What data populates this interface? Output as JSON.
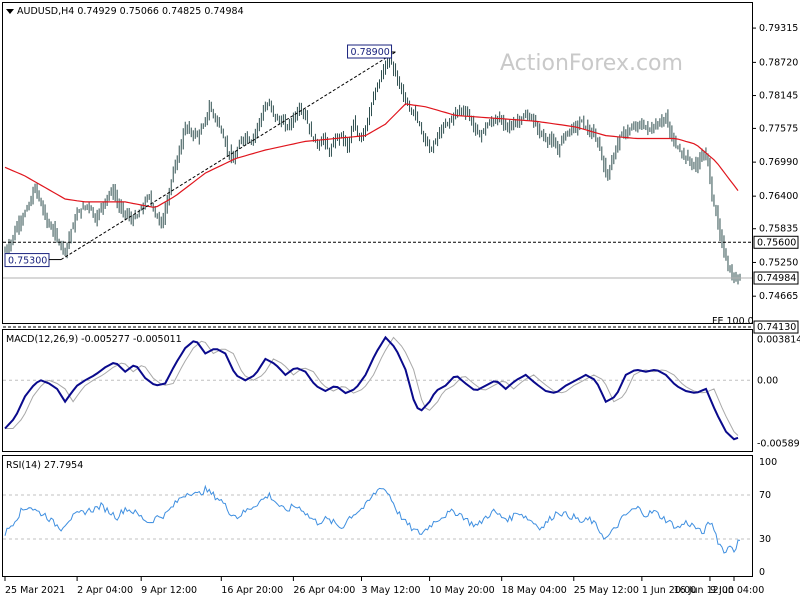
{
  "chart_data": [
    {
      "type": "candlestick",
      "symbol": "AUDUSD",
      "timeframe": "H4",
      "ohlc": {
        "open": "0.74929",
        "high": "0.75066",
        "low": "0.74825",
        "close": "0.74984"
      },
      "watermark": "ActionForex.com",
      "y_ticks": [
        "0.79315",
        "0.78720",
        "0.78145",
        "0.77575",
        "0.76990",
        "0.76400",
        "0.75835",
        "0.75250",
        "0.74665"
      ],
      "ylim": [
        0.742,
        0.7975
      ],
      "close_path": [
        [
          0,
          0.7545
        ],
        [
          3,
          0.756
        ],
        [
          6,
          0.759
        ],
        [
          9,
          0.7605
        ],
        [
          12,
          0.7625
        ],
        [
          15,
          0.7655
        ],
        [
          18,
          0.7625
        ],
        [
          21,
          0.7595
        ],
        [
          24,
          0.758
        ],
        [
          27,
          0.756
        ],
        [
          30,
          0.7545
        ],
        [
          33,
          0.758
        ],
        [
          36,
          0.761
        ],
        [
          39,
          0.762
        ],
        [
          42,
          0.7625
        ],
        [
          45,
          0.76
        ],
        [
          48,
          0.762
        ],
        [
          51,
          0.764
        ],
        [
          54,
          0.765
        ],
        [
          57,
          0.762
        ],
        [
          60,
          0.761
        ],
        [
          63,
          0.76
        ],
        [
          66,
          0.7605
        ],
        [
          69,
          0.7625
        ],
        [
          72,
          0.764
        ],
        [
          75,
          0.761
        ],
        [
          78,
          0.759
        ],
        [
          80,
          0.762
        ],
        [
          84,
          0.768
        ],
        [
          87,
          0.772
        ],
        [
          90,
          0.776
        ],
        [
          93,
          0.775
        ],
        [
          96,
          0.7745
        ],
        [
          99,
          0.776
        ],
        [
          102,
          0.7795
        ],
        [
          105,
          0.7775
        ],
        [
          108,
          0.7755
        ],
        [
          111,
          0.772
        ],
        [
          114,
          0.77
        ],
        [
          117,
          0.773
        ],
        [
          120,
          0.7745
        ],
        [
          123,
          0.7735
        ],
        [
          126,
          0.776
        ],
        [
          129,
          0.779
        ],
        [
          132,
          0.78
        ],
        [
          135,
          0.7775
        ],
        [
          138,
          0.777
        ],
        [
          141,
          0.776
        ],
        [
          144,
          0.7775
        ],
        [
          147,
          0.7795
        ],
        [
          150,
          0.778
        ],
        [
          153,
          0.7745
        ],
        [
          156,
          0.773
        ],
        [
          159,
          0.774
        ],
        [
          162,
          0.7715
        ],
        [
          165,
          0.774
        ],
        [
          168,
          0.7745
        ],
        [
          171,
          0.7725
        ],
        [
          174,
          0.7765
        ],
        [
          177,
          0.774
        ],
        [
          180,
          0.776
        ],
        [
          183,
          0.78
        ],
        [
          186,
          0.783
        ],
        [
          189,
          0.786
        ],
        [
          192,
          0.788
        ],
        [
          195,
          0.785
        ],
        [
          198,
          0.782
        ],
        [
          201,
          0.78
        ],
        [
          204,
          0.7785
        ],
        [
          207,
          0.7765
        ],
        [
          210,
          0.7735
        ],
        [
          213,
          0.772
        ],
        [
          216,
          0.7745
        ],
        [
          219,
          0.776
        ],
        [
          222,
          0.777
        ],
        [
          225,
          0.7785
        ],
        [
          228,
          0.779
        ],
        [
          231,
          0.7785
        ],
        [
          234,
          0.776
        ],
        [
          237,
          0.7745
        ],
        [
          240,
          0.776
        ],
        [
          243,
          0.777
        ],
        [
          246,
          0.7775
        ],
        [
          249,
          0.7765
        ],
        [
          252,
          0.776
        ],
        [
          255,
          0.777
        ],
        [
          258,
          0.7775
        ],
        [
          261,
          0.778
        ],
        [
          264,
          0.777
        ],
        [
          267,
          0.775
        ],
        [
          270,
          0.774
        ],
        [
          273,
          0.7735
        ],
        [
          276,
          0.772
        ],
        [
          279,
          0.7745
        ],
        [
          282,
          0.7755
        ],
        [
          285,
          0.776
        ],
        [
          288,
          0.777
        ],
        [
          291,
          0.7755
        ],
        [
          294,
          0.7745
        ],
        [
          297,
          0.7725
        ],
        [
          300,
          0.7675
        ],
        [
          303,
          0.77
        ],
        [
          306,
          0.7735
        ],
        [
          309,
          0.775
        ],
        [
          312,
          0.7755
        ],
        [
          315,
          0.776
        ],
        [
          318,
          0.7765
        ],
        [
          321,
          0.7755
        ],
        [
          324,
          0.776
        ],
        [
          327,
          0.777
        ],
        [
          330,
          0.7775
        ],
        [
          333,
          0.774
        ],
        [
          336,
          0.7725
        ],
        [
          339,
          0.771
        ],
        [
          342,
          0.77
        ],
        [
          345,
          0.769
        ],
        [
          348,
          0.7715
        ],
        [
          351,
          0.77
        ],
        [
          353,
          0.764
        ],
        [
          355,
          0.761
        ],
        [
          357,
          0.757
        ],
        [
          359,
          0.7545
        ],
        [
          361,
          0.752
        ],
        [
          363,
          0.75
        ],
        [
          365,
          0.7495
        ],
        [
          367,
          0.7498
        ]
      ],
      "ma_path": [
        [
          0,
          0.769
        ],
        [
          10,
          0.7675
        ],
        [
          20,
          0.7655
        ],
        [
          30,
          0.7635
        ],
        [
          40,
          0.763
        ],
        [
          60,
          0.763
        ],
        [
          75,
          0.762
        ],
        [
          85,
          0.764
        ],
        [
          100,
          0.768
        ],
        [
          115,
          0.7705
        ],
        [
          130,
          0.772
        ],
        [
          150,
          0.7735
        ],
        [
          165,
          0.774
        ],
        [
          180,
          0.7745
        ],
        [
          190,
          0.7765
        ],
        [
          200,
          0.78
        ],
        [
          210,
          0.7795
        ],
        [
          225,
          0.778
        ],
        [
          245,
          0.7775
        ],
        [
          265,
          0.777
        ],
        [
          285,
          0.776
        ],
        [
          300,
          0.7745
        ],
        [
          315,
          0.774
        ],
        [
          335,
          0.774
        ],
        [
          345,
          0.773
        ],
        [
          355,
          0.77
        ],
        [
          367,
          0.7645
        ]
      ],
      "trendline": {
        "from": [
          28,
          0.753
        ],
        "to": [
          195,
          0.789
        ]
      },
      "swing_labels": [
        {
          "label": "0.78900",
          "bar": 195,
          "price": 0.789
        },
        {
          "label": "0.75300",
          "bar": 28,
          "price": 0.753
        }
      ],
      "levels": [
        {
          "price": 0.756,
          "label": "0.75600",
          "style": "dash"
        },
        {
          "price": 0.7498,
          "label": "0.74984",
          "style": "solid"
        },
        {
          "price": 0.7413,
          "label": "0.74130",
          "style": "dash",
          "note": "FE 100.0"
        }
      ],
      "bar_count": 368
    },
    {
      "type": "line",
      "title": "MACD(12,26,9) -0.005277 -0.005011",
      "y_ticks": [
        "0.003814",
        "0.00",
        "-0.005895"
      ],
      "ylim": [
        -0.0066,
        0.0046
      ],
      "zero_label": "0.00",
      "macd": [
        [
          0,
          -0.0045
        ],
        [
          5,
          -0.0035
        ],
        [
          10,
          -0.0015
        ],
        [
          15,
          -0.0003
        ],
        [
          18,
          0.0
        ],
        [
          22,
          -0.0003
        ],
        [
          26,
          -0.0008
        ],
        [
          30,
          -0.002
        ],
        [
          33,
          -0.0012
        ],
        [
          36,
          -0.0005
        ],
        [
          40,
          0.0
        ],
        [
          45,
          0.0005
        ],
        [
          50,
          0.0012
        ],
        [
          55,
          0.0017
        ],
        [
          60,
          0.0008
        ],
        [
          65,
          0.0015
        ],
        [
          70,
          0.0002
        ],
        [
          75,
          -0.0005
        ],
        [
          80,
          -0.0003
        ],
        [
          85,
          0.0015
        ],
        [
          90,
          0.003
        ],
        [
          95,
          0.0038
        ],
        [
          100,
          0.0025
        ],
        [
          105,
          0.003
        ],
        [
          110,
          0.0025
        ],
        [
          115,
          0.0005
        ],
        [
          120,
          0.0
        ],
        [
          125,
          0.0005
        ],
        [
          130,
          0.002
        ],
        [
          135,
          0.0015
        ],
        [
          140,
          0.0005
        ],
        [
          145,
          0.0012
        ],
        [
          150,
          0.0008
        ],
        [
          155,
          -0.0005
        ],
        [
          160,
          -0.001
        ],
        [
          165,
          -0.0005
        ],
        [
          170,
          -0.0012
        ],
        [
          175,
          -0.0008
        ],
        [
          180,
          0.0005
        ],
        [
          185,
          0.0025
        ],
        [
          190,
          0.004
        ],
        [
          195,
          0.003
        ],
        [
          200,
          0.001
        ],
        [
          205,
          -0.0025
        ],
        [
          208,
          -0.0028
        ],
        [
          212,
          -0.002
        ],
        [
          215,
          -0.001
        ],
        [
          220,
          -0.0005
        ],
        [
          225,
          0.0005
        ],
        [
          230,
          -0.0003
        ],
        [
          235,
          -0.001
        ],
        [
          240,
          -0.0005
        ],
        [
          245,
          0.0
        ],
        [
          250,
          -0.0008
        ],
        [
          255,
          0.0
        ],
        [
          260,
          0.0005
        ],
        [
          265,
          -0.0003
        ],
        [
          270,
          -0.001
        ],
        [
          275,
          -0.0012
        ],
        [
          280,
          -0.0005
        ],
        [
          285,
          0.0
        ],
        [
          290,
          0.0005
        ],
        [
          295,
          0.0
        ],
        [
          300,
          -0.002
        ],
        [
          305,
          -0.0015
        ],
        [
          310,
          0.0005
        ],
        [
          315,
          0.001
        ],
        [
          320,
          0.0008
        ],
        [
          325,
          0.001
        ],
        [
          330,
          0.0005
        ],
        [
          335,
          -0.0005
        ],
        [
          340,
          -0.001
        ],
        [
          345,
          -0.0012
        ],
        [
          350,
          -0.0008
        ],
        [
          355,
          -0.003
        ],
        [
          360,
          -0.0048
        ],
        [
          364,
          -0.0055
        ],
        [
          367,
          -0.0053
        ]
      ],
      "signal_lag": 4
    },
    {
      "type": "line",
      "title": "RSI(14) 27.7954",
      "y_ticks": [
        "100",
        "70",
        "30",
        "0"
      ],
      "ylim": [
        0,
        100
      ],
      "dashed_levels": [
        70,
        30
      ],
      "rsi": [
        [
          0,
          35
        ],
        [
          4,
          45
        ],
        [
          8,
          55
        ],
        [
          12,
          60
        ],
        [
          16,
          55
        ],
        [
          20,
          52
        ],
        [
          24,
          45
        ],
        [
          28,
          40
        ],
        [
          32,
          48
        ],
        [
          36,
          52
        ],
        [
          40,
          55
        ],
        [
          44,
          57
        ],
        [
          48,
          60
        ],
        [
          52,
          55
        ],
        [
          56,
          50
        ],
        [
          60,
          58
        ],
        [
          64,
          55
        ],
        [
          68,
          50
        ],
        [
          72,
          45
        ],
        [
          76,
          50
        ],
        [
          80,
          52
        ],
        [
          84,
          60
        ],
        [
          88,
          68
        ],
        [
          92,
          73
        ],
        [
          96,
          70
        ],
        [
          100,
          75
        ],
        [
          104,
          70
        ],
        [
          108,
          65
        ],
        [
          112,
          55
        ],
        [
          116,
          50
        ],
        [
          120,
          55
        ],
        [
          124,
          60
        ],
        [
          128,
          65
        ],
        [
          132,
          70
        ],
        [
          136,
          62
        ],
        [
          140,
          55
        ],
        [
          144,
          60
        ],
        [
          148,
          58
        ],
        [
          152,
          50
        ],
        [
          156,
          45
        ],
        [
          160,
          48
        ],
        [
          164,
          45
        ],
        [
          168,
          40
        ],
        [
          172,
          50
        ],
        [
          176,
          55
        ],
        [
          180,
          60
        ],
        [
          184,
          70
        ],
        [
          188,
          78
        ],
        [
          192,
          70
        ],
        [
          196,
          55
        ],
        [
          200,
          45
        ],
        [
          204,
          38
        ],
        [
          208,
          35
        ],
        [
          212,
          42
        ],
        [
          216,
          48
        ],
        [
          220,
          52
        ],
        [
          224,
          55
        ],
        [
          228,
          52
        ],
        [
          232,
          45
        ],
        [
          236,
          42
        ],
        [
          240,
          50
        ],
        [
          244,
          55
        ],
        [
          248,
          50
        ],
        [
          252,
          48
        ],
        [
          256,
          55
        ],
        [
          260,
          50
        ],
        [
          264,
          45
        ],
        [
          268,
          40
        ],
        [
          272,
          48
        ],
        [
          276,
          55
        ],
        [
          280,
          52
        ],
        [
          284,
          50
        ],
        [
          288,
          45
        ],
        [
          292,
          48
        ],
        [
          296,
          40
        ],
        [
          300,
          30
        ],
        [
          304,
          38
        ],
        [
          308,
          48
        ],
        [
          312,
          55
        ],
        [
          316,
          58
        ],
        [
          320,
          52
        ],
        [
          324,
          55
        ],
        [
          328,
          50
        ],
        [
          332,
          45
        ],
        [
          336,
          40
        ],
        [
          340,
          45
        ],
        [
          344,
          42
        ],
        [
          348,
          35
        ],
        [
          352,
          45
        ],
        [
          354,
          40
        ],
        [
          356,
          28
        ],
        [
          358,
          22
        ],
        [
          360,
          18
        ],
        [
          362,
          25
        ],
        [
          364,
          20
        ],
        [
          366,
          27
        ],
        [
          367,
          28
        ]
      ]
    }
  ],
  "x_axis": {
    "ticks": [
      {
        "label": "25 Mar 2021",
        "bar": 0
      },
      {
        "label": "2 Apr 04:00",
        "bar": 36
      },
      {
        "label": "9 Apr 12:00",
        "bar": 68
      },
      {
        "label": "16 Apr 20:00",
        "bar": 108
      },
      {
        "label": "26 Apr 04:00",
        "bar": 144
      },
      {
        "label": "3 May 12:00",
        "bar": 178
      },
      {
        "label": "10 May 20:00",
        "bar": 212
      },
      {
        "label": "18 May 04:00",
        "bar": 248
      },
      {
        "label": "25 May 12:00",
        "bar": 284
      },
      {
        "label": "1 Jun 20:00",
        "bar": 318
      },
      {
        "label": "9 Jun 04:00",
        "bar": 352
      },
      {
        "label": "16 Jun 12:00",
        "bar": 364
      }
    ]
  },
  "colors": {
    "candle": "#2f4f4f",
    "ma": "#e0151d",
    "macd": "#0a0a8c",
    "signal": "#a9a9a9",
    "rsi": "#3f8fe0",
    "grid": "#c0c0c0"
  },
  "header_icon": "dropdown-triangle-icon"
}
